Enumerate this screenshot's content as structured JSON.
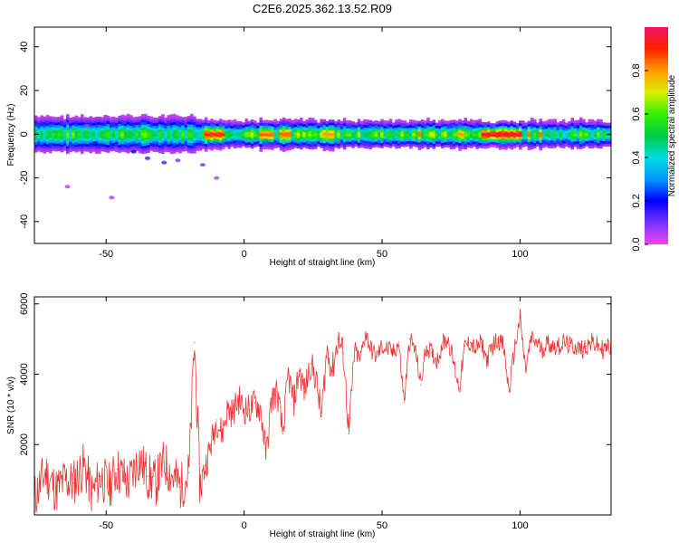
{
  "title": "C2E6.2025.362.13.52.R09",
  "colors": {
    "frame": "#000000",
    "snr_line": "#ee3333",
    "background": "#ffffff"
  },
  "chart_data": [
    {
      "type": "heatmap",
      "name": "spectrogram",
      "xlabel": "Height of straight line (km)",
      "ylabel": "Frequency (Hz)",
      "xlim": [
        -76,
        133
      ],
      "ylim": [
        -50,
        49
      ],
      "xticks": [
        -50,
        0,
        50,
        100
      ],
      "yticks": [
        -40,
        -20,
        0,
        20,
        40
      ],
      "xtick_labels": [
        "-50",
        "0",
        "50",
        "100"
      ],
      "ytick_labels": [
        "-40",
        "-20",
        "0",
        "20",
        "40"
      ],
      "colorbar": {
        "label": "Normalized spectral amplitude",
        "range": [
          0,
          1
        ],
        "ticks": [
          0.0,
          0.2,
          0.4,
          0.6,
          0.8
        ],
        "tick_labels": [
          "0.0",
          "0.2",
          "0.4",
          "0.6",
          "0.8"
        ],
        "stops": [
          "#ee44ee",
          "#7733ff",
          "#0000ff",
          "#0099ff",
          "#00dddd",
          "#00cc44",
          "#33ee00",
          "#ddee00",
          "#ff9900",
          "#ff2200",
          "#ee1166"
        ]
      },
      "band": {
        "center_hz": 0,
        "segments": [
          {
            "x_from": -76,
            "x_to": -16,
            "halfwidth_hz": 5,
            "peak": 0.55
          },
          {
            "x_from": -16,
            "x_to": 85,
            "halfwidth_hz": 3,
            "peak": 0.6
          },
          {
            "x_from": 85,
            "x_to": 100,
            "halfwidth_hz": 2,
            "peak": 0.95
          },
          {
            "x_from": 100,
            "x_to": 133,
            "halfwidth_hz": 3,
            "peak": 0.55
          }
        ],
        "hot_spots": [
          {
            "x_from": -15,
            "x_to": -8,
            "value": 0.9
          },
          {
            "x_from": 5,
            "x_to": 10,
            "value": 0.85
          },
          {
            "x_from": 12,
            "x_to": 16,
            "value": 0.85
          },
          {
            "x_from": 28,
            "x_to": 32,
            "value": 0.8
          },
          {
            "x_from": 62,
            "x_to": 64,
            "value": 0.85
          },
          {
            "x_from": 77,
            "x_to": 79,
            "value": 0.8
          },
          {
            "x_from": 85,
            "x_to": 100,
            "value": 0.95
          },
          {
            "x_from": 102,
            "x_to": 103,
            "value": 0.85
          },
          {
            "x_from": 106,
            "x_to": 107,
            "value": 0.85
          }
        ],
        "scatter_below": [
          {
            "x": -54,
            "y": -4,
            "value": 0.2
          },
          {
            "x": -48,
            "y": -6,
            "value": 0.15
          },
          {
            "x": -40,
            "y": -8,
            "value": 0.2
          },
          {
            "x": -35,
            "y": -11,
            "value": 0.15
          },
          {
            "x": -29,
            "y": -13,
            "value": 0.15
          },
          {
            "x": -24,
            "y": -12,
            "value": 0.1
          },
          {
            "x": -15,
            "y": -14,
            "value": 0.1
          },
          {
            "x": -10,
            "y": -20,
            "value": 0.05
          },
          {
            "x": -64,
            "y": -24,
            "value": 0.05
          },
          {
            "x": -48,
            "y": -29,
            "value": 0.05
          },
          {
            "x": -57,
            "y": 4,
            "value": 0.05
          },
          {
            "x": -50,
            "y": 8,
            "value": 0.05
          }
        ]
      }
    },
    {
      "type": "line",
      "name": "snr",
      "xlabel": "Height of straight line (km)",
      "ylabel": "SNR (10 * v/v)",
      "xlim": [
        -76,
        133
      ],
      "ylim": [
        0,
        6200
      ],
      "xticks": [
        -50,
        0,
        50,
        100
      ],
      "yticks": [
        2000,
        4000,
        6000
      ],
      "xtick_labels": [
        "-50",
        "0",
        "50",
        "100"
      ],
      "ytick_labels": [
        "2000",
        "4000",
        "6000"
      ],
      "series": [
        {
          "name": "SNR",
          "x": [
            -76,
            -72,
            -68,
            -65,
            -62,
            -58,
            -55,
            -52,
            -49,
            -46,
            -42,
            -38,
            -35,
            -32,
            -29,
            -26,
            -23,
            -20,
            -18,
            -16,
            -14,
            -12,
            -10,
            -8,
            -6,
            -4,
            -2,
            0,
            2,
            4,
            6,
            8,
            10,
            12,
            14,
            16,
            18,
            20,
            22,
            24,
            26,
            28,
            30,
            32,
            34,
            36,
            38,
            40,
            42,
            44,
            46,
            48,
            50,
            52,
            54,
            56,
            58,
            60,
            62,
            64,
            66,
            68,
            70,
            72,
            74,
            76,
            78,
            80,
            82,
            84,
            86,
            88,
            90,
            92,
            94,
            96,
            98,
            100,
            102,
            104,
            106,
            108,
            110,
            112,
            114,
            116,
            118,
            120,
            122,
            124,
            126,
            128,
            130,
            133
          ],
          "y": [
            500,
            1200,
            700,
            1000,
            900,
            1400,
            600,
            1100,
            800,
            1300,
            900,
            1600,
            1100,
            900,
            1500,
            1100,
            800,
            1200,
            4900,
            800,
            1400,
            2000,
            2700,
            2300,
            3000,
            2900,
            3300,
            3000,
            3000,
            3200,
            3000,
            1700,
            3300,
            3500,
            2300,
            4000,
            3200,
            4100,
            3500,
            4300,
            3900,
            2800,
            4700,
            4100,
            5000,
            4600,
            2300,
            4700,
            4400,
            5200,
            4700,
            4500,
            4800,
            4700,
            4600,
            4900,
            3200,
            5000,
            4700,
            3700,
            4800,
            4600,
            4400,
            4900,
            5000,
            4300,
            3600,
            4800,
            4900,
            4700,
            4900,
            4400,
            4800,
            5000,
            4800,
            3500,
            4700,
            5600,
            4100,
            5000,
            4900,
            4700,
            4900,
            4800,
            4800,
            4900,
            4800,
            4800,
            4700,
            4800,
            4900,
            4800,
            4700,
            4800
          ]
        }
      ]
    }
  ]
}
